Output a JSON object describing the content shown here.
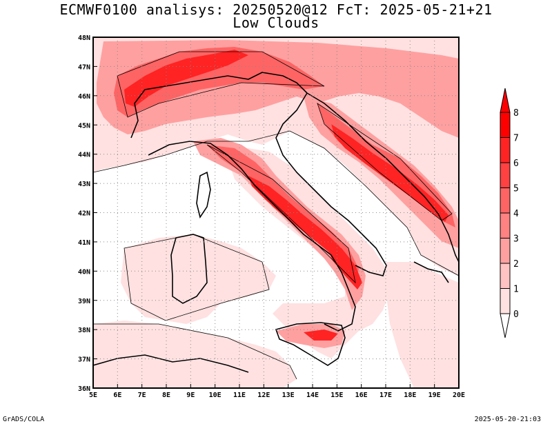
{
  "title": {
    "line1": "ECMWF0100 analisys: 20250520@12 FcT: 2025-05-21+21",
    "line2": "Low Clouds"
  },
  "axes": {
    "lon_labels": [
      "5E",
      "6E",
      "7E",
      "8E",
      "9E",
      "10E",
      "11E",
      "12E",
      "13E",
      "14E",
      "15E",
      "16E",
      "17E",
      "18E",
      "19E",
      "20E"
    ],
    "lat_labels": [
      "36N",
      "37N",
      "38N",
      "39N",
      "40N",
      "41N",
      "42N",
      "43N",
      "44N",
      "45N",
      "46N",
      "47N",
      "48N"
    ],
    "lon_range": [
      5,
      20
    ],
    "lat_range": [
      36,
      48
    ],
    "grid": "dotted"
  },
  "colorbar": {
    "ticks": [
      "0",
      "1",
      "2",
      "3",
      "4",
      "5",
      "6",
      "7",
      "8"
    ],
    "colors": [
      "#ffffff",
      "#ffe1e1",
      "#ffc3c3",
      "#ffa0a0",
      "#ff8282",
      "#ff6464",
      "#ff4141",
      "#ff2323",
      "#ff0000"
    ]
  },
  "footer": {
    "left": "GrADS/COLA",
    "right": "2025-05-20-21:03"
  }
}
